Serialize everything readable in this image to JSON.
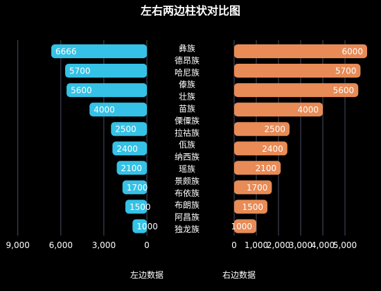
{
  "chart_data": [
    {
      "type": "bar",
      "orientation": "horizontal",
      "direction": "right-to-left",
      "title": "左右两边柱状对比图",
      "xlabel": "左边数据",
      "xlim": [
        0,
        10000
      ],
      "xticks": [
        "9,000",
        "6,000",
        "3,000",
        "0"
      ],
      "tick_values": [
        9000,
        6000,
        3000,
        0
      ],
      "grid": true,
      "categories": [
        "彝族",
        "德昂族",
        "哈尼族",
        "傣族",
        "壮族",
        "苗族",
        "傈僳族",
        "拉祜族",
        "佤族",
        "纳西族",
        "瑶族",
        "景颇族",
        "布依族",
        "布朗族",
        "阿昌族",
        "独龙族"
      ],
      "bar_categories": [
        "彝族",
        "哈尼族",
        "傣族",
        "苗族",
        "拉祜族",
        "佤族",
        "瑶族",
        "景颇族",
        "布朗族",
        "阿昌族"
      ],
      "values": [
        6666,
        5700,
        5600,
        4000,
        2500,
        2400,
        2100,
        1700,
        1500,
        1000
      ],
      "labels": [
        "6666",
        "5700",
        "5600",
        "4000",
        "2500",
        "2400",
        "2100",
        "1700",
        "1500",
        "1000"
      ],
      "color": "#35c2e6"
    },
    {
      "type": "bar",
      "orientation": "horizontal",
      "direction": "left-to-right",
      "xlabel": "右边数据",
      "xlim": [
        0,
        6000
      ],
      "xticks": [
        "0",
        "1,000",
        "2,000",
        "3,000",
        "4,000",
        "5,000"
      ],
      "tick_values": [
        0,
        1000,
        2000,
        3000,
        4000,
        5000
      ],
      "grid": true,
      "bar_categories": [
        "彝族",
        "哈尼族",
        "傣族",
        "苗族",
        "拉祜族",
        "佤族",
        "瑶族",
        "景颇族",
        "布朗族",
        "阿昌族"
      ],
      "values": [
        6000,
        5700,
        5600,
        4000,
        2500,
        2400,
        2100,
        1700,
        1500,
        1000
      ],
      "labels": [
        "6000",
        "5700",
        "5600",
        "4000",
        "2500",
        "2400",
        "2100",
        "1700",
        "1500",
        "1000"
      ],
      "color": "#e88b56"
    }
  ],
  "colors": {
    "background": "#000000",
    "text": "#ffffff",
    "grid": "#4a4f66"
  }
}
